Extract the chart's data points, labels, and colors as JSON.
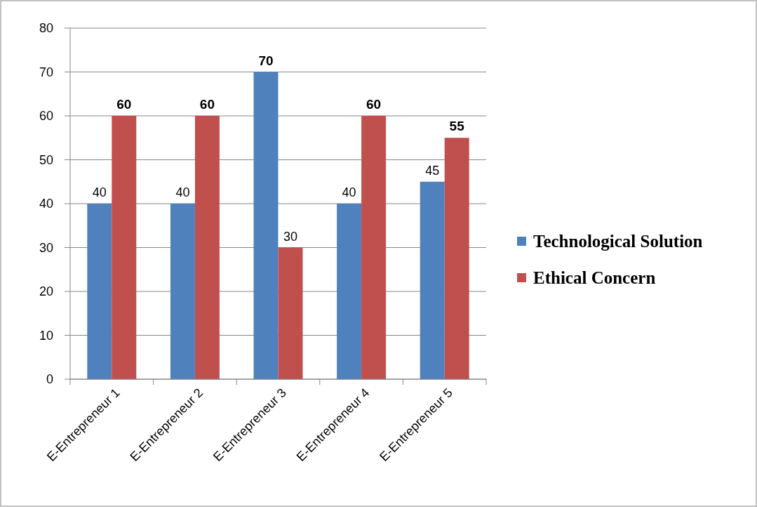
{
  "chart_data": {
    "type": "bar",
    "categories": [
      "E-Entrepreneur 1",
      "E-Entrepreneur 2",
      "E-Entrepreneur 3",
      "E-Entrepreneur 4",
      "E-Entrepreneur 5"
    ],
    "series": [
      {
        "name": "Technological Solution",
        "color": "#4f81bd",
        "values": [
          40,
          40,
          70,
          40,
          45
        ]
      },
      {
        "name": "Ethical Concern",
        "color": "#c0504d",
        "values": [
          60,
          60,
          30,
          60,
          55
        ]
      }
    ],
    "ylim": [
      0,
      80
    ],
    "yticks": [
      0,
      10,
      20,
      30,
      40,
      50,
      60,
      70,
      80
    ],
    "grid": "y",
    "legend": "right",
    "data_labels": true
  }
}
